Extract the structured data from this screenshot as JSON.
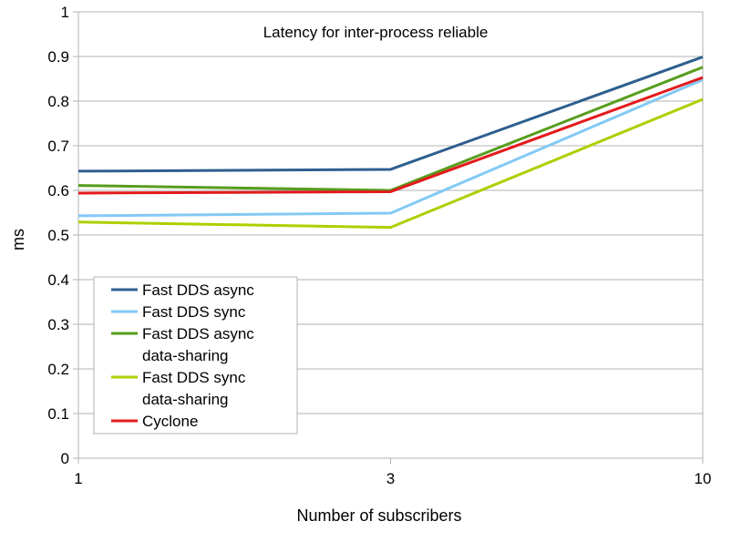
{
  "chart_data": {
    "type": "line",
    "title": "Latency for inter-process reliable",
    "xlabel": "Number of subscribers",
    "ylabel": "ms",
    "x": [
      "1",
      "3",
      "10"
    ],
    "ylim": [
      0,
      1
    ],
    "yticks": [
      "0",
      "0.1",
      "0.2",
      "0.3",
      "0.4",
      "0.5",
      "0.6",
      "0.7",
      "0.8",
      "0.9",
      "1"
    ],
    "grid": "horizontal",
    "legend_position": "bottom-left",
    "series": [
      {
        "name": "Fast DDS async",
        "legend_lines": [
          "Fast DDS async"
        ],
        "color": "#2E5F8F",
        "values": [
          0.643,
          0.647,
          0.899
        ]
      },
      {
        "name": "Fast DDS sync",
        "legend_lines": [
          "Fast DDS sync"
        ],
        "color": "#83C9F4",
        "values": [
          0.543,
          0.549,
          0.848
        ]
      },
      {
        "name": "Fast DDS async data-sharing",
        "legend_lines": [
          "Fast DDS async",
          "data-sharing"
        ],
        "color": "#579D1C",
        "values": [
          0.611,
          0.6,
          0.876
        ]
      },
      {
        "name": "Fast DDS sync data-sharing",
        "legend_lines": [
          "Fast DDS sync",
          "data-sharing"
        ],
        "color": "#AECF00",
        "values": [
          0.529,
          0.517,
          0.804
        ]
      },
      {
        "name": "Cyclone",
        "legend_lines": [
          "Cyclone"
        ],
        "color": "#E31A1C",
        "values": [
          0.594,
          0.597,
          0.853
        ]
      }
    ]
  }
}
